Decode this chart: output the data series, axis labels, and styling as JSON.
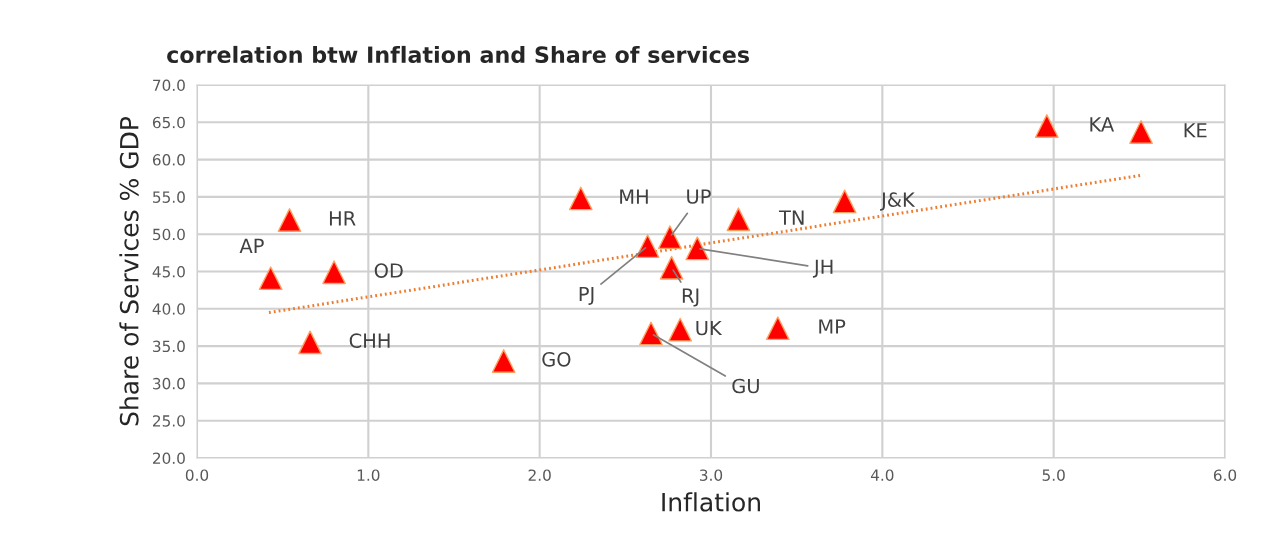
{
  "chart_data": {
    "type": "scatter",
    "title": "correlation btw Inflation and Share of services",
    "xlabel": "Inflation",
    "ylabel": "Share of Services % GDP",
    "series": [
      {
        "color": "#ff0000",
        "marker": "triangle",
        "x": [
          0.54,
          0.43,
          0.8,
          0.66,
          1.79,
          2.24,
          2.63,
          2.76,
          2.92,
          2.77,
          2.65,
          2.82,
          3.39,
          3.16,
          3.78,
          4.96,
          5.51
        ],
        "values": [
          51.9,
          44.1,
          44.9,
          35.5,
          33.0,
          54.8,
          48.4,
          49.6,
          48.1,
          45.5,
          36.7,
          37.2,
          37.4,
          52.0,
          54.4,
          64.5,
          63.7
        ]
      },
      {
        "type": "line",
        "color": "#ed7d31",
        "line_style": "dotted",
        "marker": "none",
        "x": [
          0.42,
          5.51
        ],
        "values": [
          39.5,
          57.9
        ]
      }
    ],
    "annotations": [
      {
        "text": "HR",
        "x": 0.54,
        "y": 51.9
      },
      {
        "text": "AP",
        "x": 0.43,
        "y": 44.1
      },
      {
        "text": "OD",
        "x": 0.8,
        "y": 44.9
      },
      {
        "text": "CHH",
        "x": 0.66,
        "y": 35.5
      },
      {
        "text": "GO",
        "x": 1.79,
        "y": 33.0
      },
      {
        "text": "MH",
        "x": 2.24,
        "y": 54.8
      },
      {
        "text": "PJ",
        "x": 2.63,
        "y": 48.4
      },
      {
        "text": "UP",
        "x": 2.76,
        "y": 49.6
      },
      {
        "text": "JH",
        "x": 2.92,
        "y": 48.1
      },
      {
        "text": "RJ",
        "x": 2.77,
        "y": 45.5
      },
      {
        "text": "GU",
        "x": 2.65,
        "y": 36.7
      },
      {
        "text": "UK",
        "x": 2.82,
        "y": 37.2
      },
      {
        "text": "MP",
        "x": 3.39,
        "y": 37.4
      },
      {
        "text": "TN",
        "x": 3.16,
        "y": 52.0
      },
      {
        "text": "J&K",
        "x": 3.78,
        "y": 54.4
      },
      {
        "text": "KA",
        "x": 4.96,
        "y": 64.5
      },
      {
        "text": "KE",
        "x": 5.51,
        "y": 63.7
      }
    ],
    "xlim": [
      0,
      6
    ],
    "ylim": [
      20,
      70
    ],
    "xticks": [
      {
        "value": 0,
        "label": "0.0"
      },
      {
        "value": 1,
        "label": "1.0"
      },
      {
        "value": 2,
        "label": "2.0"
      },
      {
        "value": 3,
        "label": "3.0"
      },
      {
        "value": 4,
        "label": "4.0"
      },
      {
        "value": 5,
        "label": "5.0"
      },
      {
        "value": 6,
        "label": "6.0"
      }
    ],
    "yticks": [
      {
        "value": 20,
        "label": "20.0"
      },
      {
        "value": 25,
        "label": "25.0"
      },
      {
        "value": 30,
        "label": "30.0"
      },
      {
        "value": 35,
        "label": "35.0"
      },
      {
        "value": 40,
        "label": "40.0"
      },
      {
        "value": 45,
        "label": "45.0"
      },
      {
        "value": 50,
        "label": "50.0"
      },
      {
        "value": 55,
        "label": "55.0"
      },
      {
        "value": 60,
        "label": "60.0"
      },
      {
        "value": 65,
        "label": "65.0"
      },
      {
        "value": 70,
        "label": "70.0"
      }
    ],
    "grid": true,
    "legend": false
  }
}
